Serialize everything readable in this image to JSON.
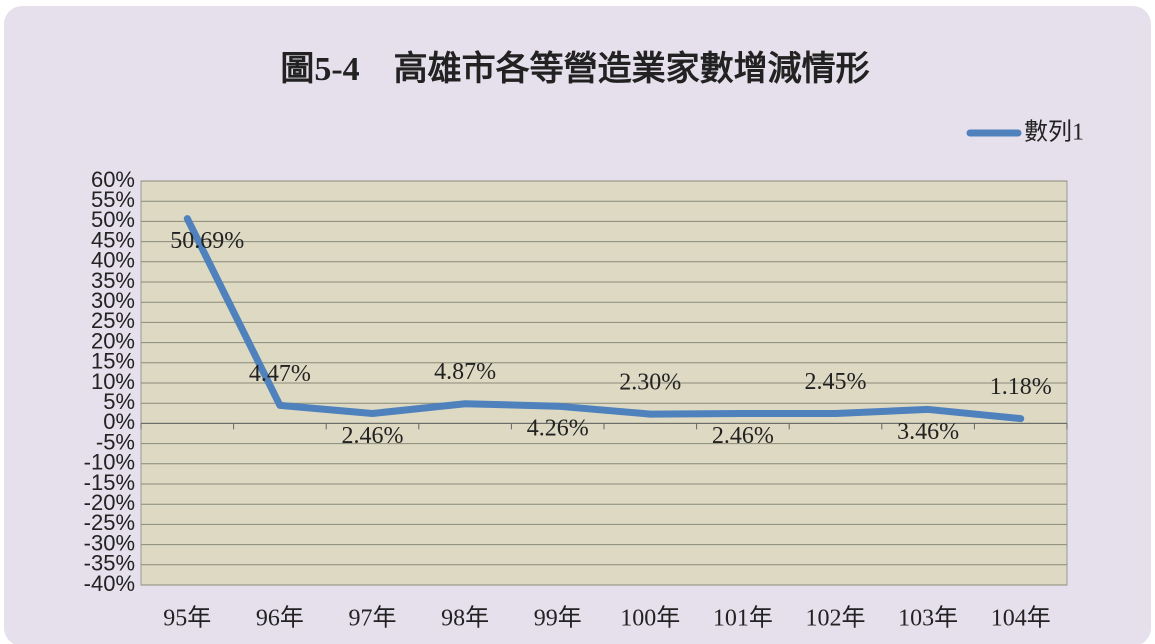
{
  "chart_data": {
    "type": "line",
    "title": "圖5-4　高雄市各等營造業家數增減情形",
    "categories": [
      "95年",
      "96年",
      "97年",
      "98年",
      "99年",
      "100年",
      "101年",
      "102年",
      "103年",
      "104年"
    ],
    "series": [
      {
        "name": "數列1",
        "color": "#4f81bd",
        "values": [
          50.69,
          4.47,
          2.46,
          4.87,
          4.26,
          2.3,
          2.46,
          2.45,
          3.46,
          1.18
        ],
        "value_labels": [
          "50.69%",
          "4.47%",
          "2.46%",
          "4.87%",
          "4.26%",
          "2.30%",
          "2.46%",
          "2.45%",
          "3.46%",
          "1.18%"
        ]
      }
    ],
    "ylim": [
      -40,
      60
    ],
    "yticks": [
      {
        "value": 60,
        "label": "60%"
      },
      {
        "value": 55,
        "label": "55%"
      },
      {
        "value": 50,
        "label": "50%"
      },
      {
        "value": 45,
        "label": "45%"
      },
      {
        "value": 40,
        "label": "40%"
      },
      {
        "value": 35,
        "label": "35%"
      },
      {
        "value": 30,
        "label": "30%"
      },
      {
        "value": 25,
        "label": "25%"
      },
      {
        "value": 20,
        "label": "20%"
      },
      {
        "value": 15,
        "label": "15%"
      },
      {
        "value": 10,
        "label": "10%"
      },
      {
        "value": 5,
        "label": "5%"
      },
      {
        "value": 0,
        "label": "0%"
      },
      {
        "value": -5,
        "label": "-5%"
      },
      {
        "value": -10,
        "label": "-10%"
      },
      {
        "value": -15,
        "label": "-15%"
      },
      {
        "value": -20,
        "label": "-20%"
      },
      {
        "value": -25,
        "label": "-25%"
      },
      {
        "value": -30,
        "label": "-30%"
      },
      {
        "value": -35,
        "label": "-35%"
      },
      {
        "value": -40,
        "label": "-40%"
      }
    ],
    "grid": true,
    "legend": "top-right",
    "plot_background": "#ddd9c3"
  }
}
